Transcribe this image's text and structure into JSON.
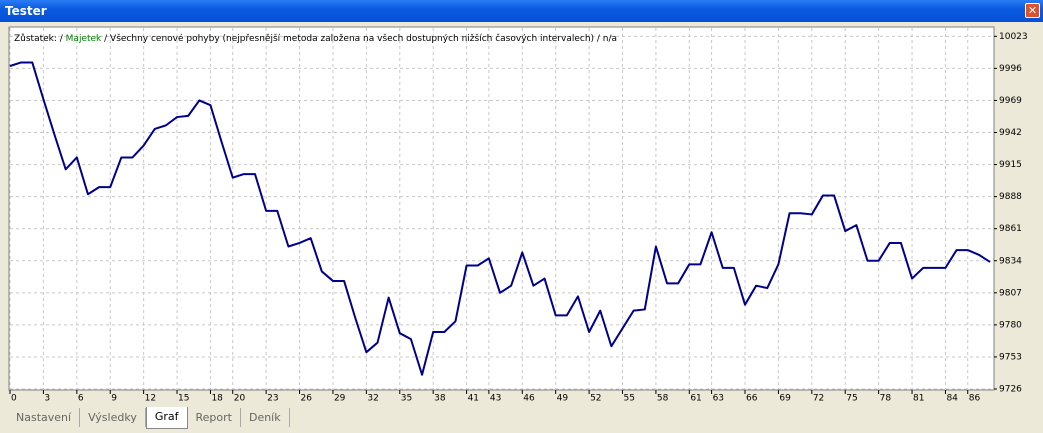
{
  "window": {
    "title": "Tester"
  },
  "tabs": [
    "Nastavení",
    "Výsledky",
    "Graf",
    "Report",
    "Deník"
  ],
  "active_tab": "Graf",
  "chart_data": {
    "type": "line",
    "legend_text": [
      "Zůstatek: / ",
      "Majetek",
      " / Všechny cenové pohyby (nejpřesnější metoda založena na všech dostupných nižších časových intervalech) / n/a"
    ],
    "legend_colors": [
      "#000000",
      "#008000",
      "#000000"
    ],
    "x": [
      0,
      1,
      2,
      3,
      4,
      5,
      6,
      7,
      8,
      9,
      10,
      11,
      12,
      13,
      14,
      15,
      16,
      17,
      18,
      19,
      20,
      21,
      22,
      23,
      24,
      25,
      26,
      27,
      28,
      29,
      30,
      31,
      32,
      33,
      34,
      35,
      36,
      37,
      38,
      39,
      40,
      41,
      42,
      43,
      44,
      45,
      46,
      47,
      48,
      49,
      50,
      51,
      52,
      53,
      54,
      55,
      56,
      57,
      58,
      59,
      60,
      61,
      62,
      63,
      64,
      65,
      66,
      67,
      68,
      69,
      70,
      71,
      72,
      73,
      74,
      75,
      76,
      77,
      78,
      79,
      80,
      81,
      82,
      83,
      84,
      85,
      86,
      87,
      88
    ],
    "series": [
      {
        "color": "#00008b",
        "values": [
          9998,
          10001,
          10001,
          9970,
          9940,
          9911,
          9921,
          9890,
          9896,
          9896,
          9921,
          9921,
          9931,
          9945,
          9948,
          9955,
          9956,
          9969,
          9965,
          9934,
          9904,
          9907,
          9907,
          9876,
          9876,
          9846,
          9849,
          9853,
          9825,
          9817,
          9817,
          9786,
          9757,
          9765,
          9803,
          9773,
          9768,
          9738,
          9774,
          9774,
          9783,
          9830,
          9830,
          9836,
          9807,
          9813,
          9841,
          9813,
          9819,
          9788,
          9788,
          9804,
          9774,
          9792,
          9762,
          9777,
          9792,
          9793,
          9846,
          9815,
          9815,
          9831,
          9831,
          9858,
          9828,
          9828,
          9797,
          9813,
          9811,
          9831,
          9874,
          9874,
          9873,
          9889,
          9889,
          9859,
          9864,
          9834,
          9834,
          9849,
          9849,
          9819,
          9828,
          9828,
          9828,
          9843,
          9843,
          9839,
          9833
        ]
      }
    ],
    "xlim": [
      0,
      88
    ],
    "xticks": [
      0,
      3,
      6,
      9,
      12,
      15,
      18,
      20,
      23,
      26,
      29,
      32,
      35,
      38,
      41,
      43,
      46,
      49,
      52,
      55,
      58,
      61,
      63,
      66,
      69,
      72,
      75,
      78,
      81,
      84,
      86
    ],
    "ylim": [
      9726,
      10030
    ],
    "yticks": [
      9726,
      9753,
      9780,
      9807,
      9834,
      9861,
      9888,
      9915,
      9942,
      9969,
      9996,
      10023
    ],
    "grid": true
  }
}
